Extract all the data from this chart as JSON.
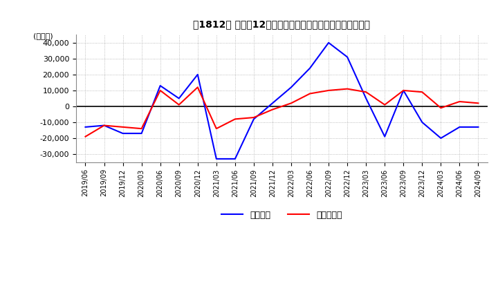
{
  "title": "［1812］ 利益の12か月移動合計の対前年同期増減額の推移",
  "ylabel": "(百万円)",
  "ylim": [
    -35000,
    45000
  ],
  "yticks": [
    -30000,
    -20000,
    -10000,
    0,
    10000,
    20000,
    30000,
    40000
  ],
  "legend_labels": [
    "経常利益",
    "当期純利益"
  ],
  "line_colors": [
    "#0000ff",
    "#ff0000"
  ],
  "dates": [
    "2019/06",
    "2019/09",
    "2019/12",
    "2020/03",
    "2020/06",
    "2020/09",
    "2020/12",
    "2021/03",
    "2021/06",
    "2021/09",
    "2021/12",
    "2022/03",
    "2022/06",
    "2022/09",
    "2022/12",
    "2023/03",
    "2023/06",
    "2023/09",
    "2023/12",
    "2024/03",
    "2024/06",
    "2024/09"
  ],
  "keijo_rieki": [
    -13000,
    -12000,
    -17000,
    -17000,
    13000,
    5000,
    20000,
    -33000,
    -33000,
    -8000,
    2000,
    12000,
    24000,
    40000,
    31000,
    5000,
    -19000,
    10000,
    -10000,
    -20000,
    -13000,
    -13000
  ],
  "touki_junrieki": [
    -19000,
    -12000,
    -13000,
    -14000,
    10000,
    1000,
    12000,
    -14000,
    -8000,
    -7000,
    -2000,
    2000,
    8000,
    10000,
    11000,
    9000,
    1000,
    10000,
    9000,
    -1000,
    3000,
    2000
  ],
  "background_color": "#ffffff",
  "grid_color": "#aaaaaa"
}
